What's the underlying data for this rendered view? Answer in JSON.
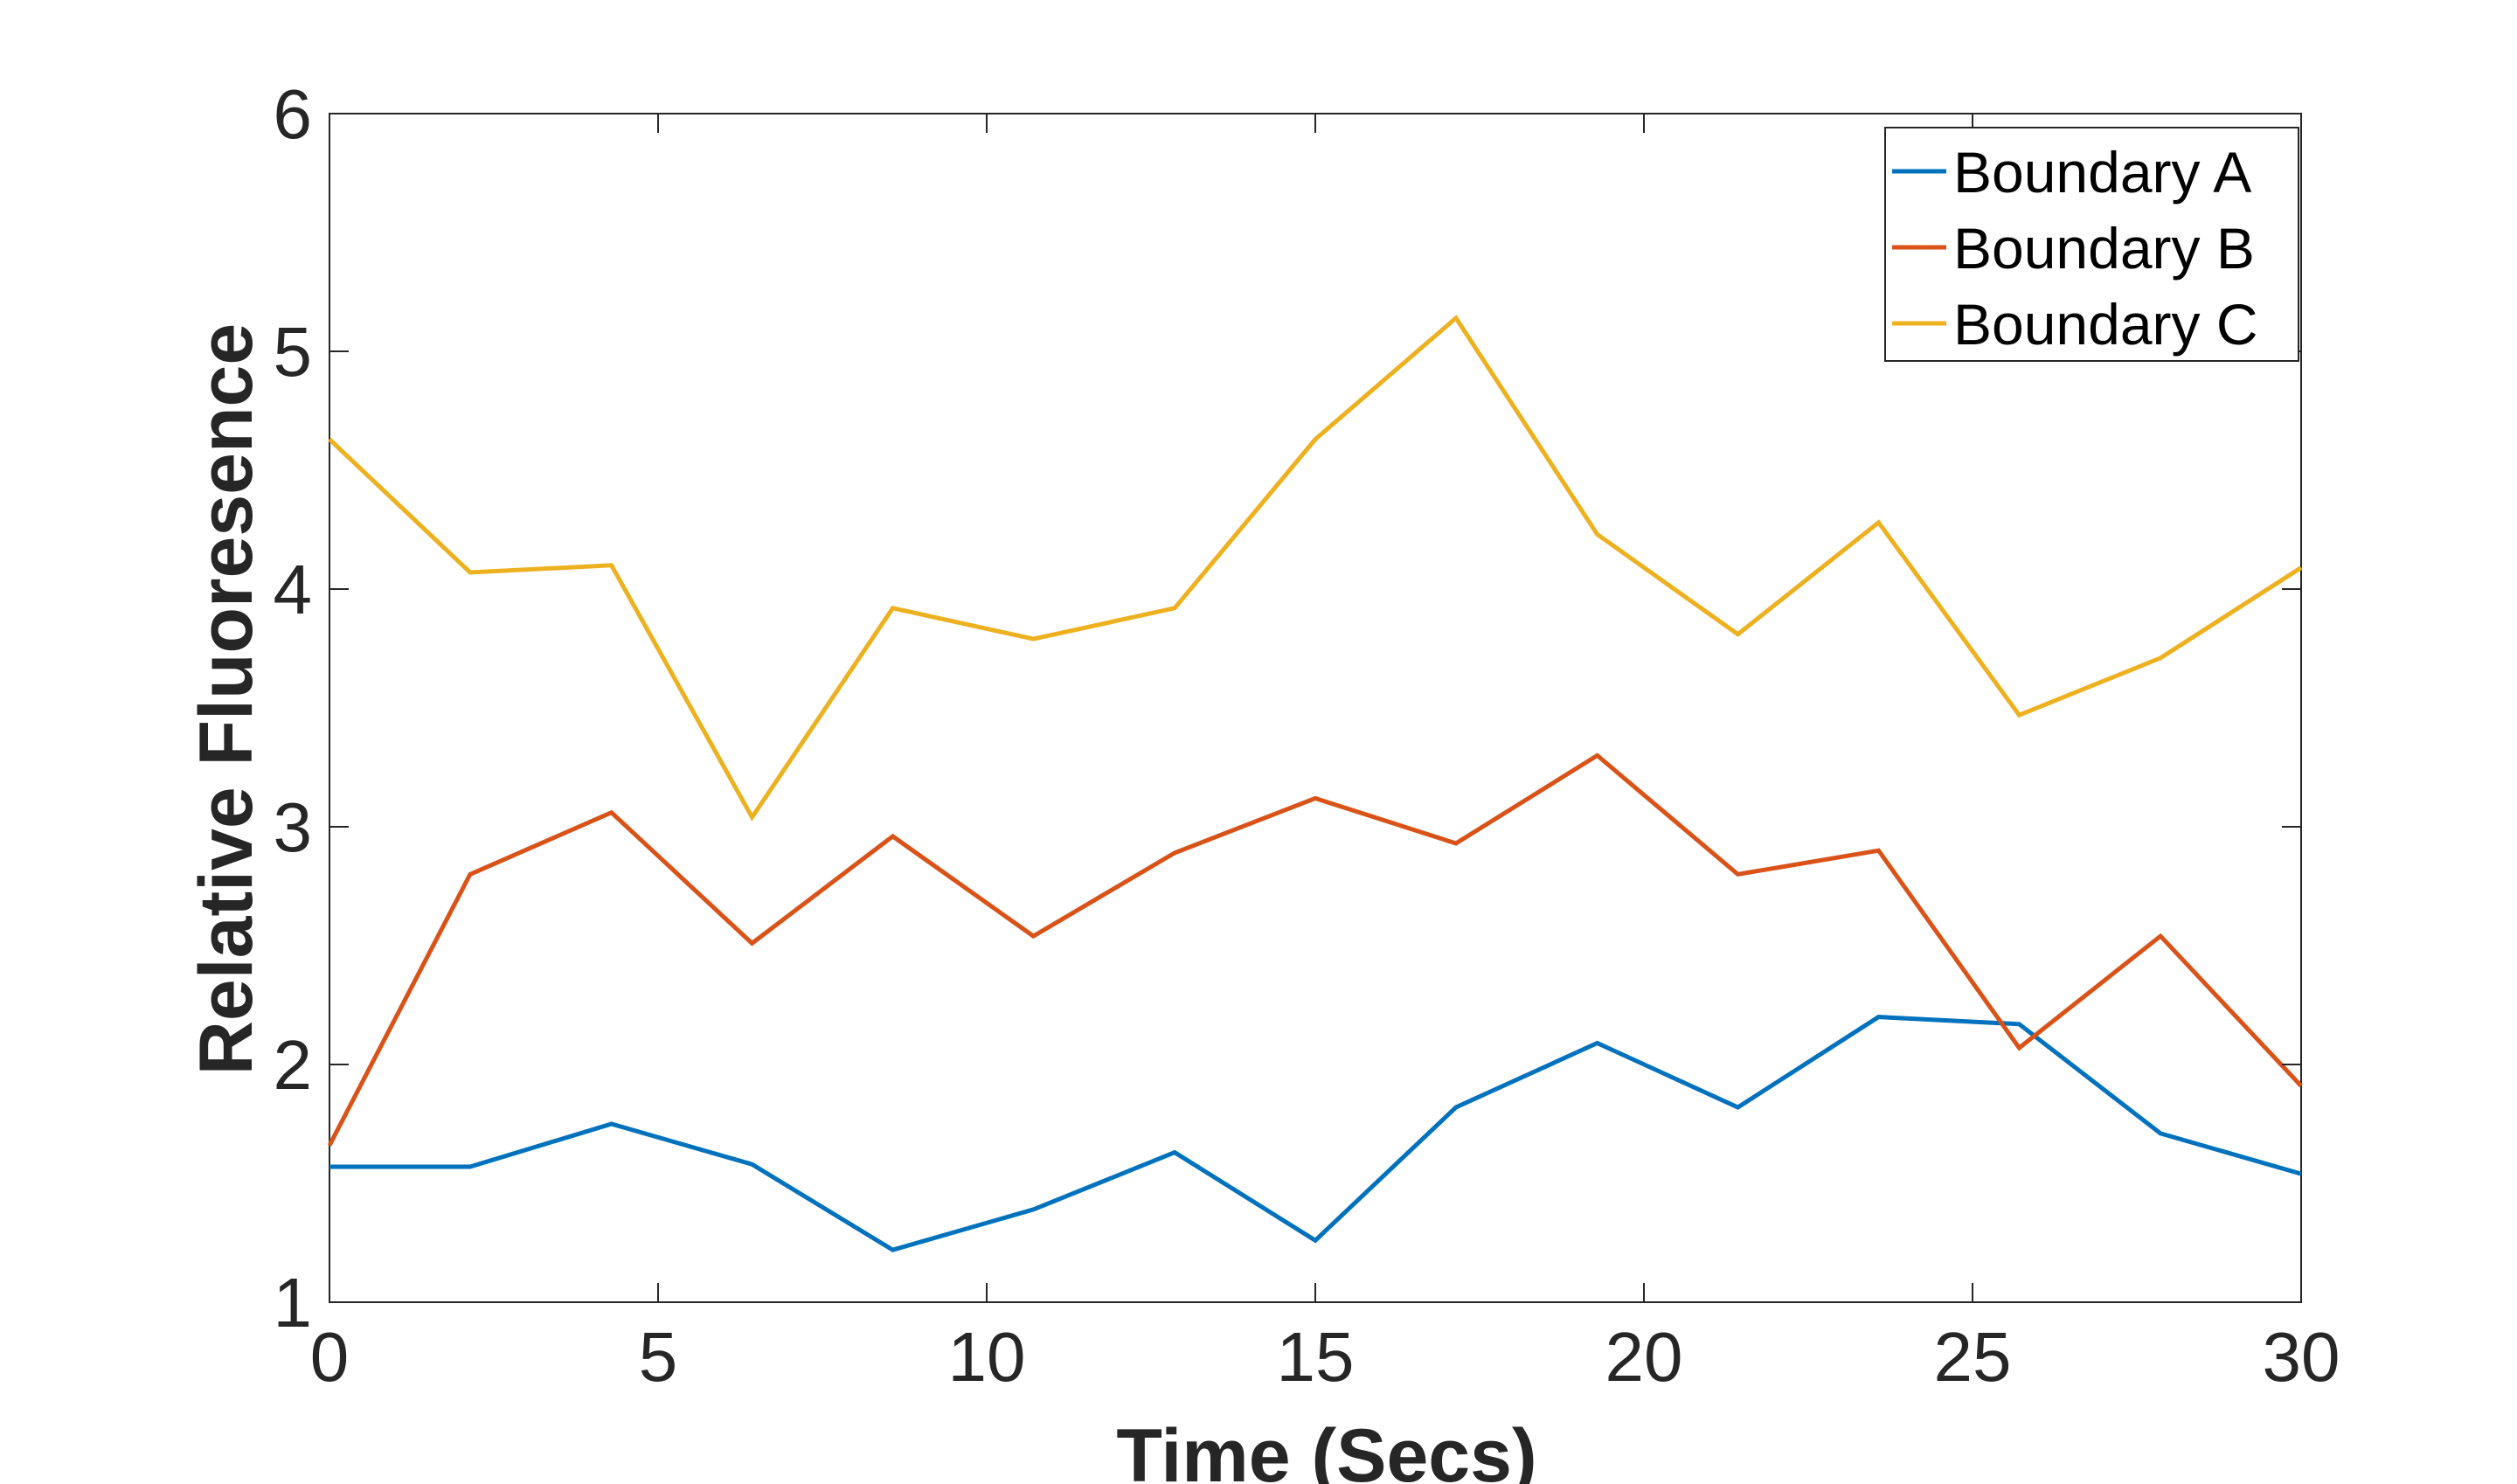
{
  "chart_data": {
    "type": "line",
    "title": "",
    "xlabel": "Time (Secs)",
    "ylabel": "Relative Fluoresence",
    "xlim": [
      0,
      30
    ],
    "ylim": [
      1,
      6
    ],
    "xticks": [
      0,
      5,
      10,
      15,
      20,
      25,
      30
    ],
    "yticks": [
      1,
      2,
      3,
      4,
      5,
      6
    ],
    "grid": false,
    "legend_position": "top-right",
    "x": [
      0,
      2.14,
      4.29,
      6.43,
      8.57,
      10.71,
      12.86,
      15.0,
      17.14,
      19.29,
      21.43,
      23.57,
      25.71,
      27.86,
      30.0
    ],
    "series": [
      {
        "name": "Boundary A",
        "color": "#0072BD",
        "values": [
          1.57,
          1.57,
          1.75,
          1.58,
          1.22,
          1.39,
          1.63,
          1.26,
          1.82,
          2.09,
          1.82,
          2.2,
          2.17,
          1.71,
          1.54
        ]
      },
      {
        "name": "Boundary B",
        "color": "#D95319",
        "values": [
          1.66,
          2.8,
          3.06,
          2.51,
          2.96,
          2.54,
          2.89,
          3.12,
          2.93,
          3.3,
          2.8,
          2.9,
          2.07,
          2.54,
          1.91
        ]
      },
      {
        "name": "Boundary C",
        "color": "#EDB120",
        "values": [
          4.63,
          4.07,
          4.1,
          3.04,
          3.92,
          3.79,
          3.92,
          4.63,
          5.14,
          4.23,
          3.81,
          4.28,
          3.47,
          3.71,
          4.09
        ]
      }
    ]
  }
}
